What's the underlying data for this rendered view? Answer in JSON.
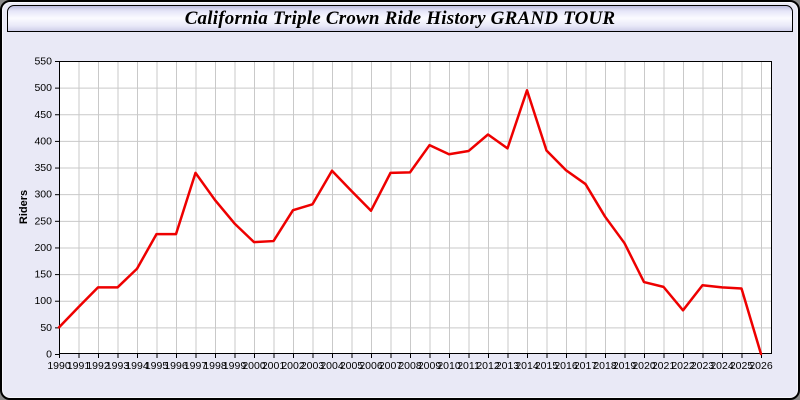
{
  "window": {
    "title": "California Triple Crown Ride History GRAND TOUR"
  },
  "colors": {
    "window_bg": "#e9e9f6",
    "plot_bg": "#ffffff",
    "grid": "#c9c9c9",
    "axis": "#000000",
    "line": "#ee0000"
  },
  "chart_data": {
    "type": "line",
    "title": "California Triple Crown Ride History GRAND TOUR",
    "xlabel": "",
    "ylabel": "Riders",
    "ylim": [
      0,
      550
    ],
    "ytick_step": 50,
    "grid": true,
    "legend": false,
    "x": [
      1990,
      1991,
      1992,
      1993,
      1994,
      1995,
      1996,
      1997,
      1998,
      1999,
      2000,
      2001,
      2002,
      2003,
      2004,
      2005,
      2006,
      2007,
      2008,
      2009,
      2010,
      2011,
      2012,
      2013,
      2014,
      2015,
      2016,
      2017,
      2018,
      2019,
      2020,
      2021,
      2022,
      2023,
      2024,
      2025,
      2026
    ],
    "series": [
      {
        "name": "Riders",
        "color": "#ee0000",
        "values": [
          50,
          88,
          125,
          125,
          160,
          225,
          225,
          340,
          289,
          245,
          210,
          212,
          270,
          281,
          344,
          306,
          269,
          340,
          341,
          392,
          375,
          381,
          412,
          386,
          495,
          382,
          345,
          319,
          258,
          208,
          135,
          126,
          82,
          129,
          125,
          123,
          0
        ]
      }
    ]
  }
}
